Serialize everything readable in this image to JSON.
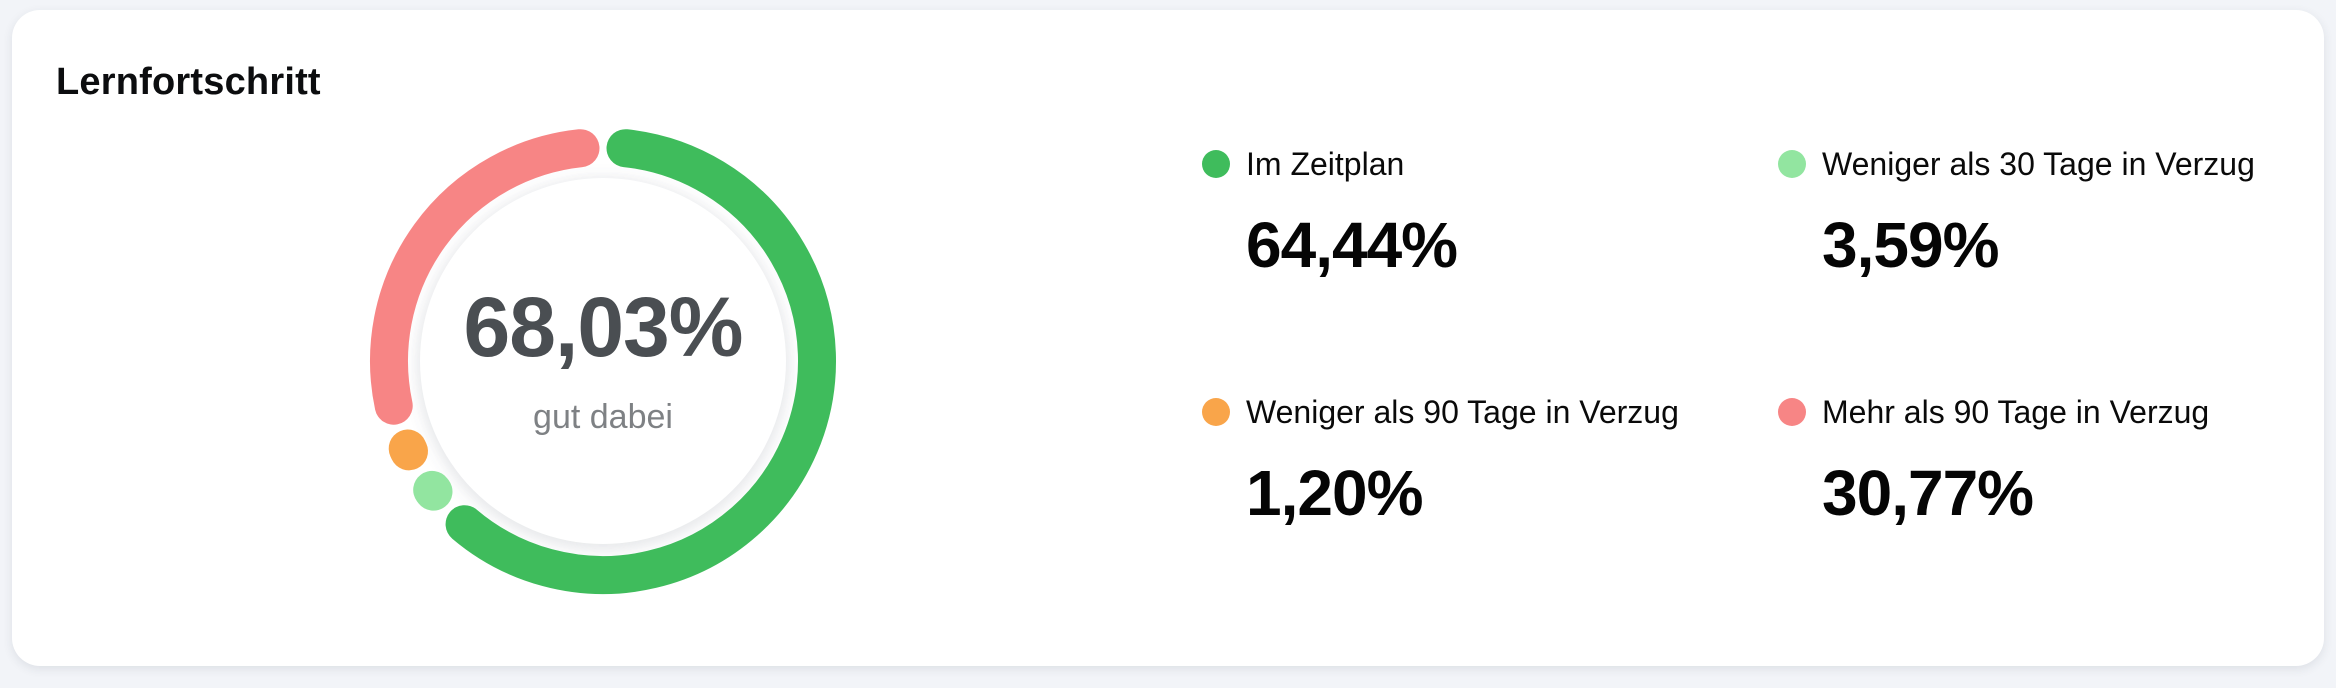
{
  "card": {
    "title": "Lernfortschritt"
  },
  "chart_data": {
    "type": "pie",
    "variant": "donut-progress-ring",
    "title": "Lernfortschritt",
    "center": {
      "value": "68,03%",
      "caption": "gut dabei"
    },
    "legend_position": "right",
    "start_angle_deg": 0,
    "direction": "clockwise",
    "segments": [
      {
        "label": "Im Zeitplan",
        "value_pct": 64.44,
        "display": "64,44%",
        "color": "#3fbc5c"
      },
      {
        "label": "Weniger als 30 Tage in Verzug",
        "value_pct": 3.59,
        "display": "3,59%",
        "color": "#92e5a0"
      },
      {
        "label": "Weniger als 90 Tage in Verzug",
        "value_pct": 1.2,
        "display": "1,20%",
        "color": "#f9a54a"
      },
      {
        "label": "Mehr als 90 Tage in Verzug",
        "value_pct": 30.77,
        "display": "30,77%",
        "color": "#f78585"
      }
    ]
  },
  "colors": {
    "page_background": "#f2f4f8",
    "card_background": "#ffffff",
    "title_text": "#0c0d0f",
    "center_value_text": "#4a4e52",
    "center_caption_text": "#7e8184",
    "legend_label_text": "#0a0a0a",
    "legend_value_text": "#050505"
  }
}
